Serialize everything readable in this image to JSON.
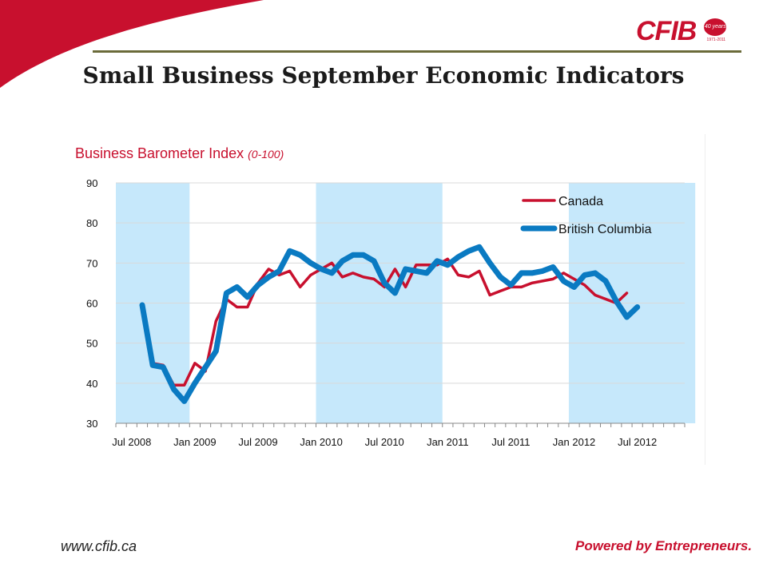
{
  "header": {
    "title": "Small Business September Economic Indicators",
    "logo_text": "CFIB",
    "badge_text": "40 years",
    "badge_years": "1971-2011"
  },
  "footer": {
    "url": "www.cfib.ca",
    "tagline": "Powered by Entrepreneurs."
  },
  "colors": {
    "brand_red": "#c8102e",
    "canada": "#c8102e",
    "british_columbia": "#0a7ac2",
    "shade": "#c6e8fb",
    "title_rule": "#6b6b3a"
  },
  "chart_data": {
    "type": "line",
    "title": "Business Barometer Index",
    "title_unit": "(0-100)",
    "ylim": [
      30,
      90
    ],
    "yticks": [
      "30",
      "40",
      "50",
      "60",
      "70",
      "80",
      "90"
    ],
    "grid": "horizontal",
    "legend_position": "top-right",
    "x_tick_labels": [
      "Jul 2008",
      "Jan 2009",
      "Jul 2009",
      "Jan 2010",
      "Jul 2010",
      "Jan 2011",
      "Jul 2011",
      "Jan 2012",
      "Jul 2012"
    ],
    "x_first_month": "2008-06",
    "month_count": 54,
    "shaded_periods": [
      [
        "2008-06",
        "2008-12"
      ],
      [
        "2010-01",
        "2010-12"
      ],
      [
        "2012-01",
        "2012-12"
      ]
    ],
    "series": [
      {
        "name": "Canada",
        "x_start": "2008-08",
        "values": [
          58,
          45,
          44.5,
          39.5,
          39.5,
          45,
          43,
          55.5,
          61,
          59,
          59,
          65,
          68.5,
          67,
          68,
          64,
          67,
          68.5,
          70,
          66.5,
          67.5,
          66.5,
          66,
          64,
          68.5,
          64,
          69.5,
          69.5,
          69.5,
          71,
          67,
          66.5,
          68,
          62,
          63,
          64,
          64,
          65,
          65.5,
          66,
          67.5,
          66,
          64.5,
          62,
          61,
          60,
          62.5
        ]
      },
      {
        "name": "British Columbia",
        "x_start": "2008-08",
        "values": [
          59.5,
          44.5,
          44,
          38.5,
          35.5,
          40,
          44,
          48,
          62.5,
          64,
          61.5,
          64.5,
          66.5,
          68,
          73,
          72,
          70,
          68.5,
          67.5,
          70.5,
          72,
          72,
          70.5,
          65,
          62.5,
          68.5,
          68,
          67.5,
          70.5,
          69.5,
          71.5,
          73,
          74,
          70,
          66.5,
          64.5,
          67.5,
          67.5,
          68,
          69,
          65.5,
          64,
          67,
          67.5,
          65.5,
          60.5,
          56.5,
          59
        ]
      }
    ]
  }
}
